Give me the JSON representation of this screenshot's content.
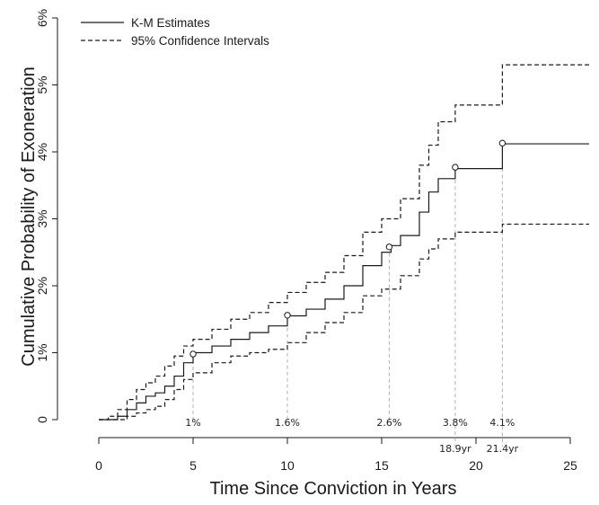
{
  "chart_data": {
    "type": "line",
    "title": "",
    "xlabel": "Time Since Conviction in Years",
    "ylabel": "Cumulative Probability of Exoneration",
    "xlim": [
      0,
      26
    ],
    "ylim": [
      0,
      6
    ],
    "x_ticks": [
      0,
      5,
      10,
      15,
      20,
      25
    ],
    "x_tick_labels": [
      "0",
      "5",
      "10",
      "15",
      "20",
      "25"
    ],
    "y_ticks": [
      0,
      1,
      2,
      3,
      4,
      5,
      6
    ],
    "y_tick_labels": [
      "0",
      "1%",
      "2%",
      "3%",
      "4%",
      "5%",
      "6%"
    ],
    "grid": false,
    "legend": {
      "position": "top-left",
      "entries": [
        {
          "label": "K-M Estimates",
          "style": "solid"
        },
        {
          "label": "95% Confidence Intervals",
          "style": "dashed"
        }
      ]
    },
    "series": [
      {
        "name": "K-M Estimates",
        "style": "solid",
        "color": "#1a1a1a",
        "points": [
          [
            0,
            0
          ],
          [
            0.5,
            0
          ],
          [
            1.0,
            0.05
          ],
          [
            1.5,
            0.15
          ],
          [
            2.0,
            0.25
          ],
          [
            2.5,
            0.35
          ],
          [
            3.0,
            0.4
          ],
          [
            3.5,
            0.5
          ],
          [
            4.0,
            0.65
          ],
          [
            4.5,
            0.85
          ],
          [
            5.0,
            1.0
          ],
          [
            6.0,
            1.1
          ],
          [
            7.0,
            1.2
          ],
          [
            8.0,
            1.3
          ],
          [
            9.0,
            1.4
          ],
          [
            10.0,
            1.55
          ],
          [
            11.0,
            1.65
          ],
          [
            12.0,
            1.8
          ],
          [
            13.0,
            2.0
          ],
          [
            14.0,
            2.3
          ],
          [
            15.0,
            2.5
          ],
          [
            15.5,
            2.6
          ],
          [
            16.0,
            2.75
          ],
          [
            17.0,
            3.1
          ],
          [
            17.5,
            3.4
          ],
          [
            18.0,
            3.6
          ],
          [
            18.9,
            3.75
          ],
          [
            20.0,
            3.75
          ],
          [
            21.4,
            3.75
          ],
          [
            21.4,
            4.12
          ],
          [
            26,
            4.12
          ]
        ]
      },
      {
        "name": "Upper 95% CI",
        "style": "dashed",
        "color": "#1a1a1a",
        "points": [
          [
            0,
            0
          ],
          [
            0.5,
            0.05
          ],
          [
            1.0,
            0.15
          ],
          [
            1.5,
            0.3
          ],
          [
            2.0,
            0.45
          ],
          [
            2.5,
            0.55
          ],
          [
            3.0,
            0.65
          ],
          [
            3.5,
            0.8
          ],
          [
            4.0,
            0.95
          ],
          [
            4.5,
            1.1
          ],
          [
            5.0,
            1.2
          ],
          [
            6.0,
            1.35
          ],
          [
            7.0,
            1.5
          ],
          [
            8.0,
            1.6
          ],
          [
            9.0,
            1.75
          ],
          [
            10.0,
            1.9
          ],
          [
            11.0,
            2.05
          ],
          [
            12.0,
            2.2
          ],
          [
            13.0,
            2.45
          ],
          [
            14.0,
            2.8
          ],
          [
            15.0,
            3.0
          ],
          [
            16.0,
            3.3
          ],
          [
            17.0,
            3.8
          ],
          [
            17.5,
            4.1
          ],
          [
            18.0,
            4.45
          ],
          [
            18.9,
            4.7
          ],
          [
            20.0,
            4.7
          ],
          [
            21.4,
            4.7
          ],
          [
            21.4,
            5.3
          ],
          [
            26,
            5.3
          ]
        ]
      },
      {
        "name": "Lower 95% CI",
        "style": "dashed",
        "color": "#1a1a1a",
        "points": [
          [
            0,
            0
          ],
          [
            1.0,
            0
          ],
          [
            1.5,
            0.05
          ],
          [
            2.0,
            0.1
          ],
          [
            2.5,
            0.15
          ],
          [
            3.0,
            0.2
          ],
          [
            3.5,
            0.3
          ],
          [
            4.0,
            0.45
          ],
          [
            4.5,
            0.6
          ],
          [
            5.0,
            0.7
          ],
          [
            6.0,
            0.85
          ],
          [
            7.0,
            0.95
          ],
          [
            8.0,
            1.0
          ],
          [
            9.0,
            1.05
          ],
          [
            10.0,
            1.15
          ],
          [
            11.0,
            1.3
          ],
          [
            12.0,
            1.45
          ],
          [
            13.0,
            1.6
          ],
          [
            14.0,
            1.85
          ],
          [
            15.0,
            1.95
          ],
          [
            16.0,
            2.15
          ],
          [
            17.0,
            2.4
          ],
          [
            17.5,
            2.55
          ],
          [
            18.0,
            2.7
          ],
          [
            18.9,
            2.8
          ],
          [
            20.0,
            2.8
          ],
          [
            21.4,
            2.8
          ],
          [
            21.4,
            2.92
          ],
          [
            26,
            2.92
          ]
        ]
      }
    ],
    "markers": [
      {
        "x": 5.0,
        "y": 0.98,
        "label": "1%"
      },
      {
        "x": 10.0,
        "y": 1.56,
        "label": "1.6%"
      },
      {
        "x": 15.4,
        "y": 2.58,
        "label": "2.6%"
      },
      {
        "x": 18.9,
        "y": 3.77,
        "label": "3.8%",
        "x_label": "18.9yr"
      },
      {
        "x": 21.4,
        "y": 4.13,
        "label": "4.1%",
        "x_label": "21.4yr"
      }
    ]
  }
}
